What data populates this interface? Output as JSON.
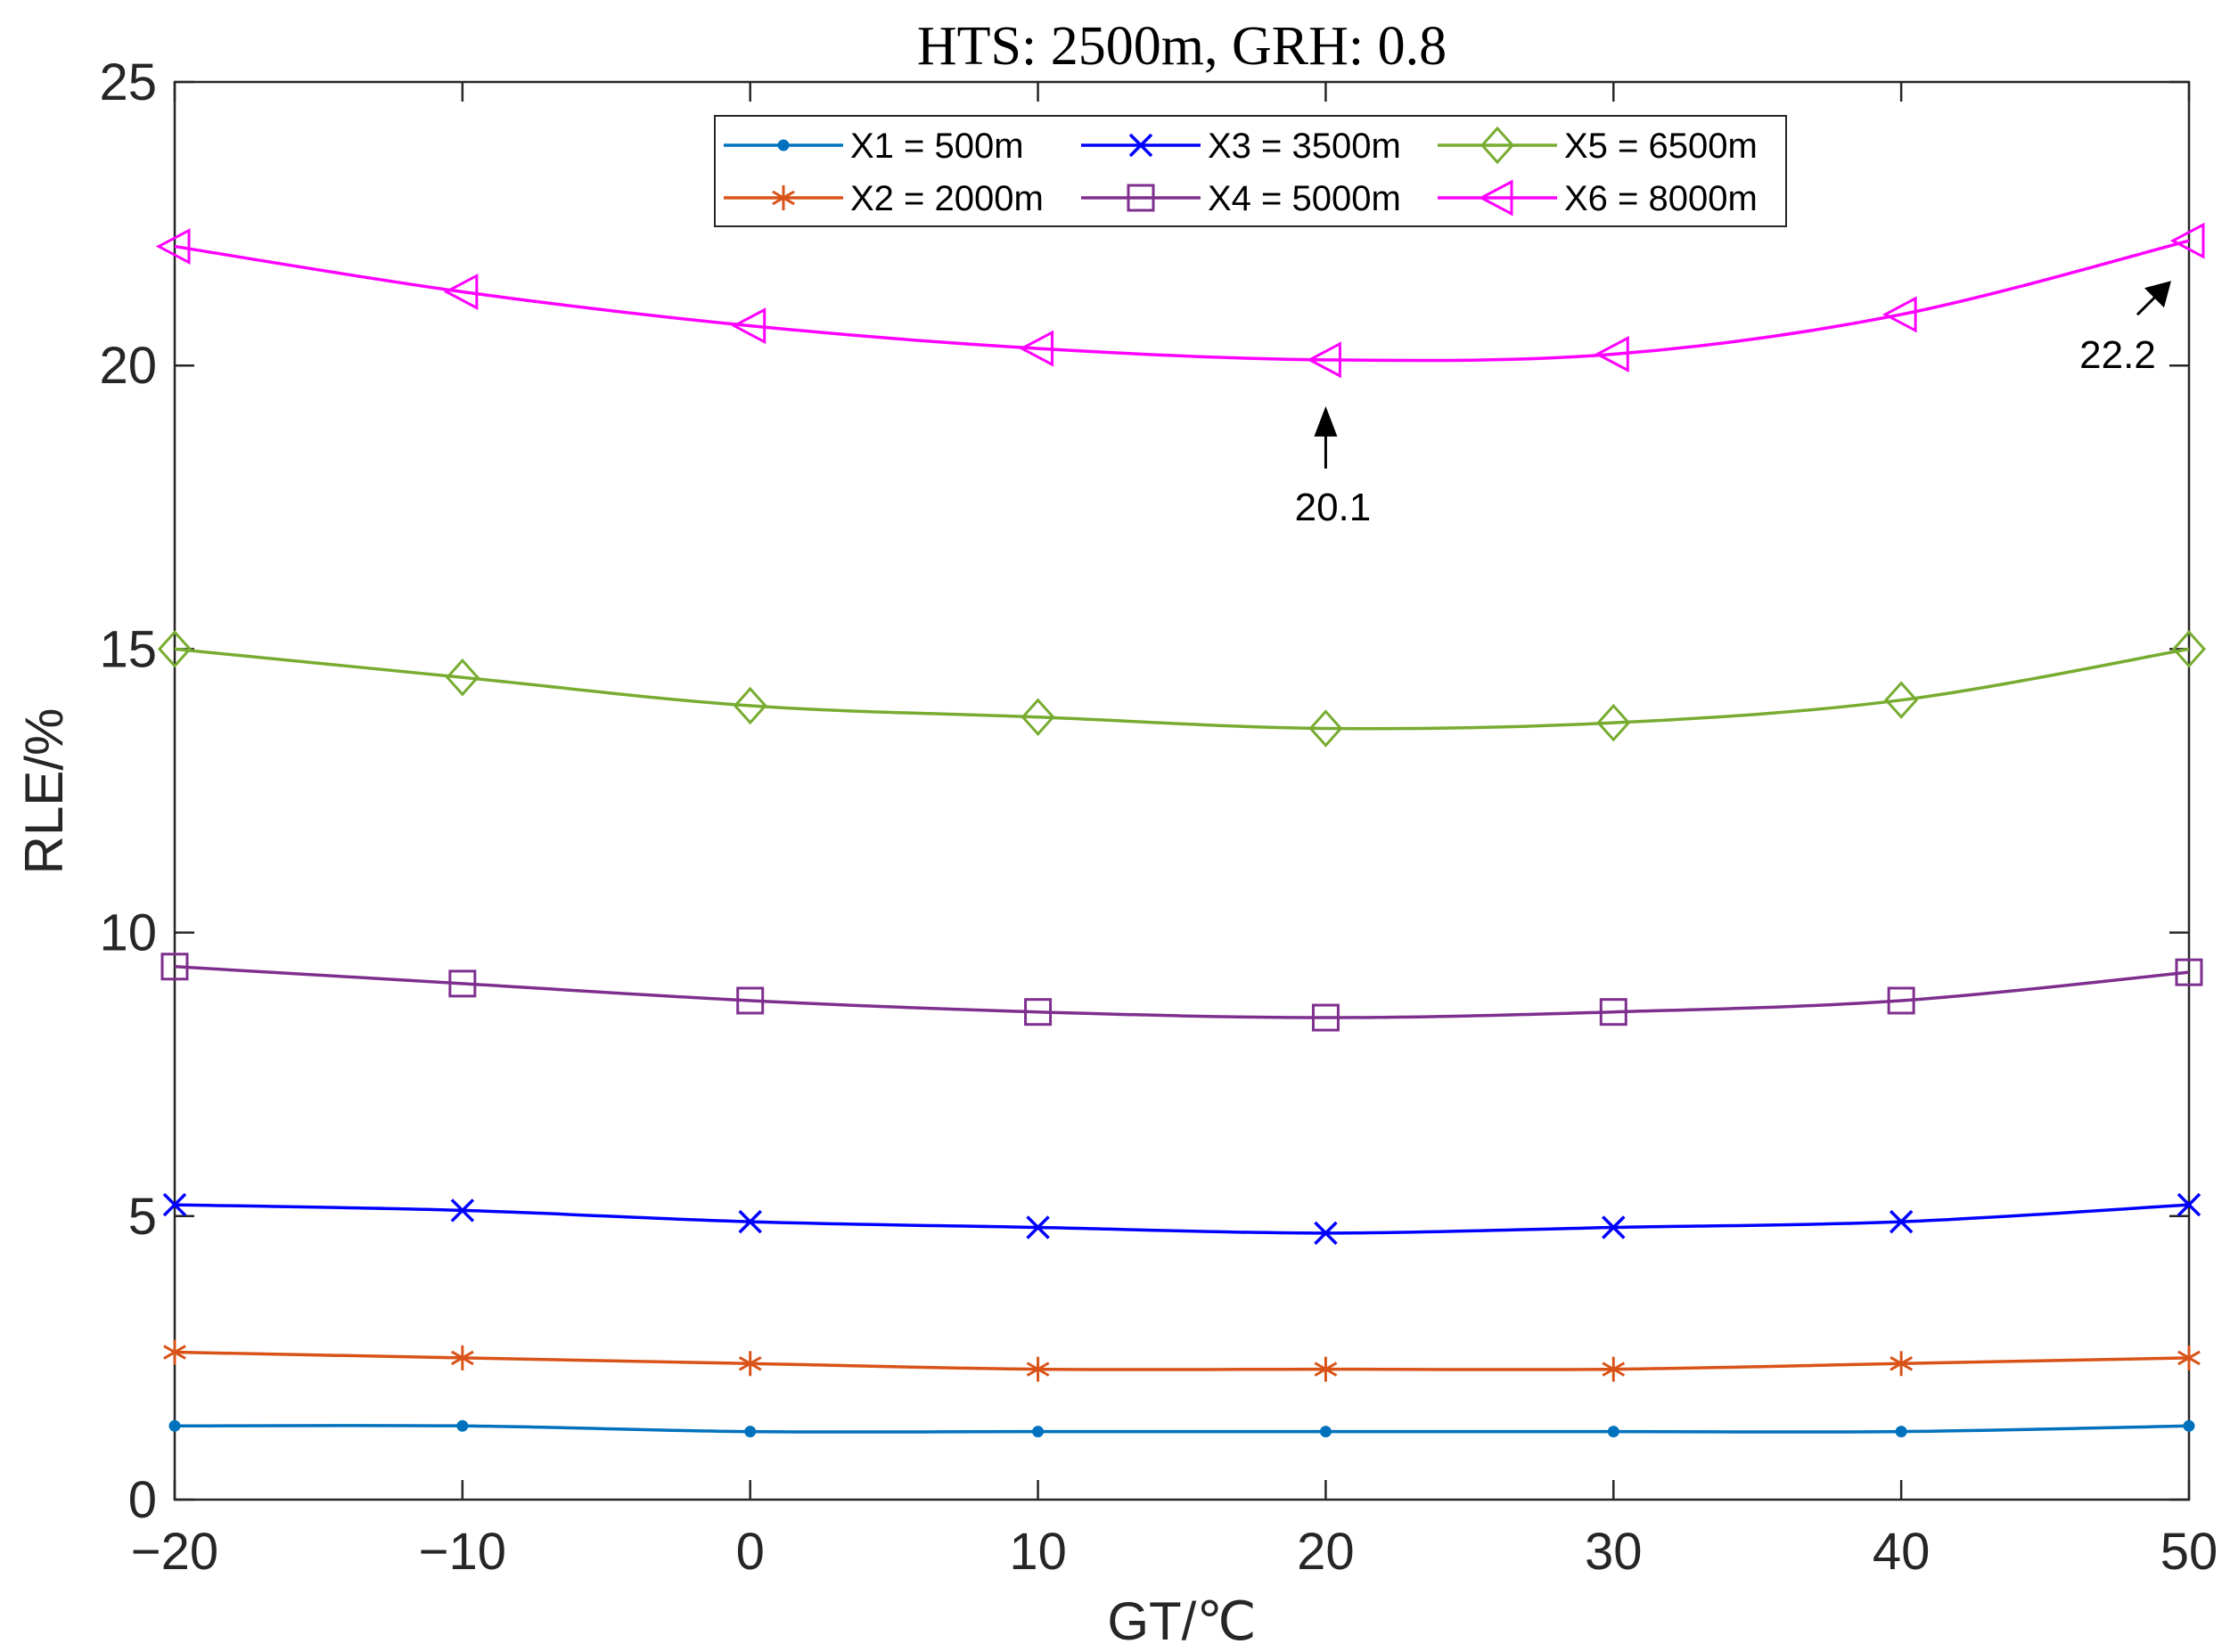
{
  "chart_data": {
    "type": "line",
    "title": "HTS: 2500m, GRH: 0.8",
    "xlabel": "GT/℃",
    "ylabel": "RLE/%",
    "xlim": [
      -20,
      50
    ],
    "ylim": [
      0,
      25
    ],
    "x": [
      -20,
      -10,
      0,
      10,
      20,
      30,
      40,
      50
    ],
    "x_tick_labels": [
      "−20",
      "−10",
      "0",
      "10",
      "20",
      "30",
      "40",
      "50"
    ],
    "y_ticks": [
      0,
      5,
      10,
      15,
      20,
      25
    ],
    "y_tick_labels": [
      "0",
      "5",
      "10",
      "15",
      "20",
      "25"
    ],
    "grid": false,
    "legend_position": "top-center",
    "series": [
      {
        "name": "X1 = 500m",
        "color": "#0072BD",
        "marker": "dot",
        "values": [
          1.3,
          1.3,
          1.2,
          1.2,
          1.2,
          1.2,
          1.2,
          1.3
        ]
      },
      {
        "name": "X2 = 2000m",
        "color": "#D95319",
        "marker": "asterisk",
        "values": [
          2.6,
          2.5,
          2.4,
          2.3,
          2.3,
          2.3,
          2.4,
          2.5
        ]
      },
      {
        "name": "X3 = 3500m",
        "color": "#0000FF",
        "marker": "x",
        "values": [
          5.2,
          5.1,
          4.9,
          4.8,
          4.7,
          4.8,
          4.9,
          5.2
        ]
      },
      {
        "name": "X4 = 5000m",
        "color": "#7E2F8E",
        "marker": "square",
        "values": [
          9.4,
          9.1,
          8.8,
          8.6,
          8.5,
          8.6,
          8.8,
          9.3
        ]
      },
      {
        "name": "X5 = 6500m",
        "color": "#77AC30",
        "marker": "diamond",
        "values": [
          15.0,
          14.5,
          14.0,
          13.8,
          13.6,
          13.7,
          14.1,
          15.0
        ]
      },
      {
        "name": "X6 = 8000m",
        "color": "#FF00FF",
        "marker": "triangle-left",
        "values": [
          22.1,
          21.3,
          20.7,
          20.3,
          20.1,
          20.2,
          20.9,
          22.2
        ]
      }
    ],
    "annotations": [
      {
        "text": "20.1",
        "x": 20,
        "y": 20.1,
        "arrow": "up"
      },
      {
        "text": "22.2",
        "x": 50,
        "y": 22.2,
        "arrow": "up-right"
      }
    ]
  }
}
